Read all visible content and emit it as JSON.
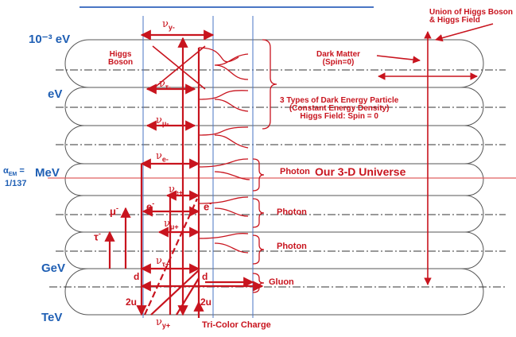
{
  "energy_levels": [
    {
      "label": "10⁻³ eV"
    },
    {
      "label": "eV"
    },
    {
      "label": "MeV"
    },
    {
      "label": "GeV"
    },
    {
      "label": "TeV"
    }
  ],
  "alpha_em": {
    "symbol": "α",
    "sub": "EM",
    "eq": " =",
    "value": "1/137"
  },
  "annotations": {
    "union_line1": "Union of Higgs Boson",
    "union_line2": "& Higgs Field",
    "higgs_boson_line1": "Higgs",
    "higgs_boson_line2": "Boson",
    "dark_matter_line1": "Dark Matter",
    "dark_matter_line2": "(Spin=0)",
    "dark_energy_line1": "3 Types of Dark Energy Particle",
    "dark_energy_line2": "(Constant Energy Density)",
    "dark_energy_line3": "Higgs Field: Spin = 0",
    "photon_1": "Photon",
    "our_universe": "Our 3-D Universe",
    "photon_2": "Photon",
    "photon_3": "Photon",
    "gluon": "Gluon",
    "tri_color": "Tri-Color Charge"
  },
  "particles": {
    "nu_y_minus": {
      "base": "ν",
      "sub": "y-"
    },
    "nu_tau_minus": {
      "base": "ν",
      "sub": "τ-"
    },
    "nu_mu_minus": {
      "base": "ν",
      "sub": "μ-"
    },
    "nu_e_minus": {
      "base": "ν",
      "sub": "e-"
    },
    "nu_e_plus": {
      "base": "ν",
      "sub": "e+"
    },
    "nu_mu_plus": {
      "base": "ν",
      "sub": "μ+"
    },
    "nu_tau_plus": {
      "base": "ν",
      "sub": "τ+"
    },
    "nu_y_plus": {
      "base": "ν",
      "sub": "y+"
    },
    "mu": {
      "base": "μ",
      "sup": "-"
    },
    "tau": {
      "base": "τ",
      "sup": "-"
    },
    "e_left": {
      "base": "e",
      "sup": "-"
    },
    "e_right": {
      "base": "e",
      "sup": "-"
    },
    "d_left": "d",
    "d_right": "d",
    "u_left": "2u",
    "u_right": "2u"
  },
  "colors": {
    "line": "#c8141e",
    "axis_text": "#1f5fb4",
    "grid": "#5a5a5a",
    "blue_line": "#4a76c4"
  }
}
